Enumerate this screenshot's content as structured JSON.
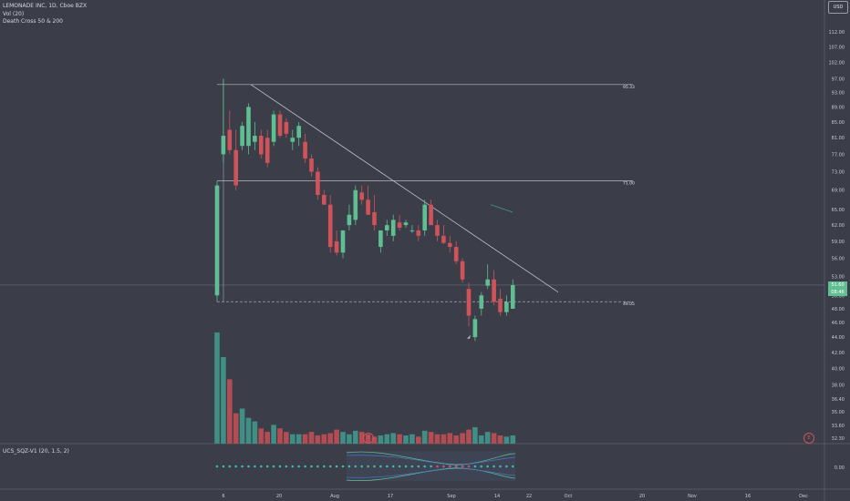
{
  "header": {
    "symbol_line": "LEMONADE INC, 1D, Cboe BZX",
    "indicator_vol": "Vol (20)",
    "indicator_cross": "Death Cross 50 & 200",
    "indicator_ucs": "UCS_SQZ-V1 (20, 1.5, 2)",
    "currency": "USD"
  },
  "price_badge": {
    "price": "51.60",
    "countdown": "08:46"
  },
  "event_marker": "E",
  "colors": {
    "background": "#3b3d49",
    "up": "#5fbf93",
    "down": "#d0535a",
    "vol_up": "#3f8f86",
    "vol_down": "#b44c54"
  },
  "chart_data": {
    "type": "candlestick",
    "y_ticks": [
      "112.00",
      "107.00",
      "102.00",
      "97.00",
      "93.00",
      "89.00",
      "85.00",
      "81.00",
      "77.00",
      "73.00",
      "69.00",
      "65.00",
      "62.00",
      "59.00",
      "56.00",
      "53.00",
      "50.00",
      "48.00",
      "46.00",
      "44.00",
      "42.00",
      "40.00",
      "38.00",
      "36.40",
      "35.00",
      "33.60",
      "32.30"
    ],
    "x_ticks": [
      "6",
      "20",
      "Aug",
      "17",
      "Sep",
      "14",
      "22",
      "Oct",
      "20",
      "Nov",
      "16",
      "Dec"
    ],
    "ylim": [
      31.8,
      118
    ],
    "candles": [
      {
        "o": 50.0,
        "h": 71,
        "l": 49.0,
        "c": 70.0
      },
      {
        "o": 77.0,
        "h": 97.0,
        "l": 75.0,
        "c": 81.5
      },
      {
        "o": 83.0,
        "h": 88.0,
        "l": 77.0,
        "c": 78.0
      },
      {
        "o": 78.0,
        "h": 83.0,
        "l": 69.0,
        "c": 70.0
      },
      {
        "o": 79.0,
        "h": 85.0,
        "l": 78.0,
        "c": 84.0
      },
      {
        "o": 79.0,
        "h": 90.0,
        "l": 77.0,
        "c": 89.0
      },
      {
        "o": 80.0,
        "h": 85.0,
        "l": 78.0,
        "c": 81.5
      },
      {
        "o": 81.5,
        "h": 83.0,
        "l": 76.0,
        "c": 77.0
      },
      {
        "o": 81.0,
        "h": 83.0,
        "l": 74.0,
        "c": 75.0
      },
      {
        "o": 80.0,
        "h": 88.0,
        "l": 79.0,
        "c": 87.0
      },
      {
        "o": 87.0,
        "h": 88.0,
        "l": 81.0,
        "c": 81.5
      },
      {
        "o": 85.0,
        "h": 86.0,
        "l": 81.0,
        "c": 82.0
      },
      {
        "o": 80.0,
        "h": 83.0,
        "l": 78.0,
        "c": 81.0
      },
      {
        "o": 81.0,
        "h": 85.0,
        "l": 79.0,
        "c": 84.0
      },
      {
        "o": 80.0,
        "h": 82.0,
        "l": 75.0,
        "c": 76.0
      },
      {
        "o": 76.0,
        "h": 77.0,
        "l": 72.0,
        "c": 73.0
      },
      {
        "o": 73.0,
        "h": 74.0,
        "l": 67.0,
        "c": 68.0
      },
      {
        "o": 68.0,
        "h": 69.0,
        "l": 66.0,
        "c": 66.0
      },
      {
        "o": 66.0,
        "h": 68.0,
        "l": 57.0,
        "c": 58.0
      },
      {
        "o": 59.0,
        "h": 61.0,
        "l": 56.5,
        "c": 57.0
      },
      {
        "o": 57.0,
        "h": 61.0,
        "l": 56.0,
        "c": 61.0
      },
      {
        "o": 62.0,
        "h": 66.0,
        "l": 61.0,
        "c": 64.0
      },
      {
        "o": 63.0,
        "h": 70.0,
        "l": 62.0,
        "c": 69.0
      },
      {
        "o": 68.5,
        "h": 70.0,
        "l": 66.0,
        "c": 67.0
      },
      {
        "o": 67.0,
        "h": 70.0,
        "l": 64.0,
        "c": 64.0
      },
      {
        "o": 64.5,
        "h": 68.0,
        "l": 61.0,
        "c": 62.0
      },
      {
        "o": 58.0,
        "h": 61.0,
        "l": 57.0,
        "c": 61.0
      },
      {
        "o": 61.0,
        "h": 63.0,
        "l": 60.0,
        "c": 62.0
      },
      {
        "o": 60.0,
        "h": 64.0,
        "l": 59.0,
        "c": 63.0
      },
      {
        "o": 62.5,
        "h": 64.0,
        "l": 61.0,
        "c": 61.5
      },
      {
        "o": 62.0,
        "h": 63.0,
        "l": 61.5,
        "c": 62.5
      },
      {
        "o": 61.0,
        "h": 62.0,
        "l": 60.5,
        "c": 61.0
      },
      {
        "o": 61.0,
        "h": 62.0,
        "l": 59.0,
        "c": 60.0
      },
      {
        "o": 61.0,
        "h": 67.0,
        "l": 60.0,
        "c": 66.0
      },
      {
        "o": 66.0,
        "h": 67.0,
        "l": 62.0,
        "c": 62.0
      },
      {
        "o": 62.0,
        "h": 63.0,
        "l": 59.0,
        "c": 60.0
      },
      {
        "o": 60.0,
        "h": 62.0,
        "l": 58.5,
        "c": 58.7
      },
      {
        "o": 58.7,
        "h": 60.0,
        "l": 57.0,
        "c": 58.0
      },
      {
        "o": 58.0,
        "h": 59.0,
        "l": 55.0,
        "c": 55.5
      },
      {
        "o": 55.5,
        "h": 56.0,
        "l": 52.0,
        "c": 52.5
      },
      {
        "o": 51.0,
        "h": 52.0,
        "l": 45.5,
        "c": 47.0
      },
      {
        "o": 44.0,
        "h": 47.0,
        "l": 43.5,
        "c": 46.5
      },
      {
        "o": 48.0,
        "h": 50.5,
        "l": 47.0,
        "c": 50.0
      },
      {
        "o": 51.5,
        "h": 55.0,
        "l": 51.0,
        "c": 52.5
      },
      {
        "o": 52.5,
        "h": 54.0,
        "l": 48.5,
        "c": 49.0
      },
      {
        "o": 49.5,
        "h": 51.0,
        "l": 47.0,
        "c": 47.5
      },
      {
        "o": 47.5,
        "h": 50.0,
        "l": 47.0,
        "c": 49.0
      },
      {
        "o": 48.0,
        "h": 52.5,
        "l": 48.0,
        "c": 51.6
      }
    ],
    "volume": [
      95,
      74,
      55,
      26,
      30,
      22,
      19,
      13,
      10,
      16,
      13,
      10,
      8,
      8,
      8,
      10,
      7,
      8,
      9,
      12,
      10,
      8,
      11,
      10,
      8,
      6,
      7,
      8,
      9,
      8,
      7,
      8,
      6,
      11,
      10,
      8,
      8,
      9,
      7,
      9,
      12,
      14,
      7,
      10,
      9,
      7,
      6,
      7
    ],
    "annotations": {
      "level_1": "95.33",
      "level_2": "71.00",
      "level_3": "49.05"
    },
    "oscillator_tick": "0.00",
    "grid": false
  }
}
